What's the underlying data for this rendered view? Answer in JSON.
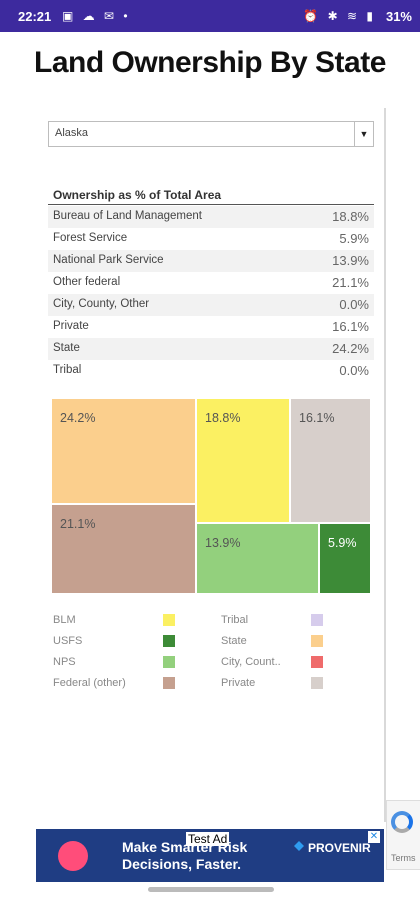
{
  "status_bar": {
    "time": "22:21",
    "left_icons": "▣ ☁ ✉ •",
    "right_icons": "⏰ ✱ ≋ ▮",
    "battery": "31%"
  },
  "page": {
    "title": "Land Ownership By State"
  },
  "state_select": {
    "value": "Alaska",
    "arrow": "▼"
  },
  "table": {
    "title": "Ownership as % of Total Area",
    "rows": [
      {
        "label": "Bureau of Land Management",
        "value": "18.8%"
      },
      {
        "label": "Forest Service",
        "value": "5.9%"
      },
      {
        "label": "National Park Service",
        "value": "13.9%"
      },
      {
        "label": "Other federal",
        "value": "21.1%"
      },
      {
        "label": "City, County, Other",
        "value": "0.0%"
      },
      {
        "label": "Private",
        "value": "16.1%"
      },
      {
        "label": "State",
        "value": "24.2%"
      },
      {
        "label": "Tribal",
        "value": "0.0%"
      }
    ]
  },
  "chart_data": {
    "type": "treemap",
    "tiles": [
      {
        "category": "State",
        "label": "24.2%",
        "value": 24.2,
        "color": "#fbcf8d"
      },
      {
        "category": "BLM",
        "label": "18.8%",
        "value": 18.8,
        "color": "#fbf062"
      },
      {
        "category": "Private",
        "label": "16.1%",
        "value": 16.1,
        "color": "#d7cfcb"
      },
      {
        "category": "Federal (other)",
        "label": "21.1%",
        "value": 21.1,
        "color": "#c5a08f"
      },
      {
        "category": "NPS",
        "label": "13.9%",
        "value": 13.9,
        "color": "#93d07d"
      },
      {
        "category": "USFS",
        "label": "5.9%",
        "value": 5.9,
        "color": "#3d8b37"
      }
    ]
  },
  "legend": {
    "items": [
      {
        "label": "BLM",
        "color": "#fbf062"
      },
      {
        "label": "USFS",
        "color": "#3d8b37"
      },
      {
        "label": "NPS",
        "color": "#93d07d"
      },
      {
        "label": "Federal (other)",
        "color": "#c5a08f"
      },
      {
        "label": "Tribal",
        "color": "#d6ccec"
      },
      {
        "label": "State",
        "color": "#fbcf8d"
      },
      {
        "label": "City, Count..",
        "color": "#ef6b6b"
      },
      {
        "label": "Private",
        "color": "#d7cfcb"
      }
    ]
  },
  "ad": {
    "headline": "Make Smarter Risk Decisions, Faster.",
    "test_label": "Test Ad",
    "brand": "PROVENIR",
    "close": "✕"
  },
  "recaptcha": {
    "terms": "Terms"
  }
}
